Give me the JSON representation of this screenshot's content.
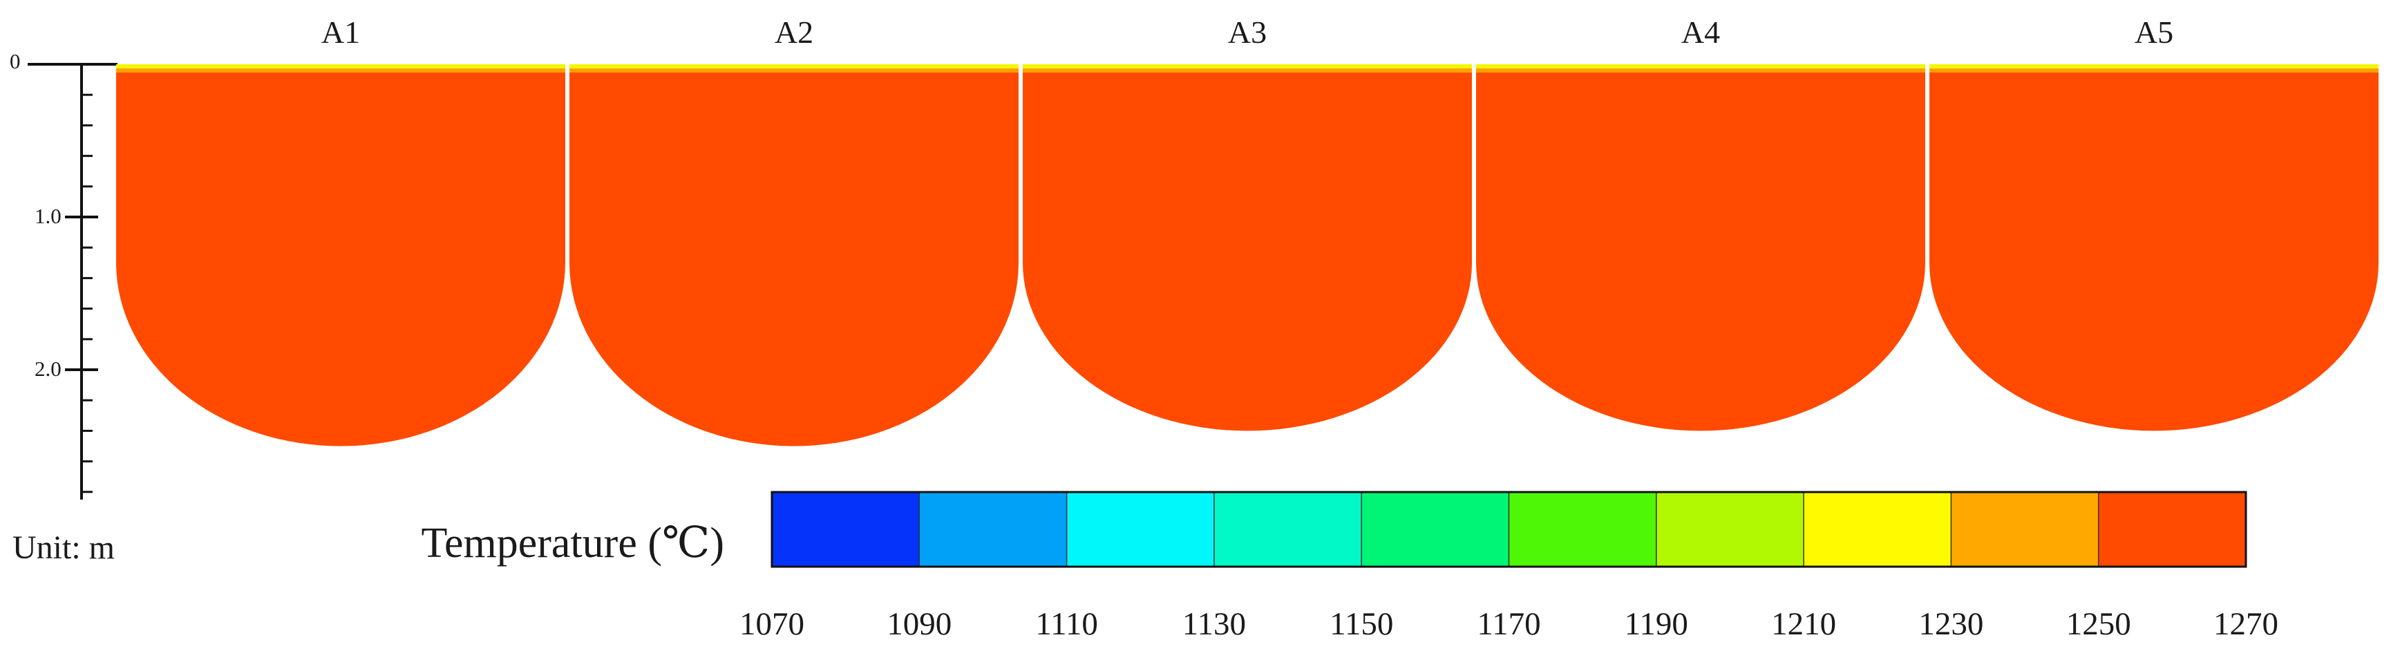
{
  "panels": [
    {
      "label": "A1",
      "depth_m": 2.5
    },
    {
      "label": "A2",
      "depth_m": 2.5
    },
    {
      "label": "A3",
      "depth_m": 2.4
    },
    {
      "label": "A4",
      "depth_m": 2.4
    },
    {
      "label": "A5",
      "depth_m": 2.4
    }
  ],
  "depth_axis": {
    "ticks": [
      {
        "value": 0,
        "label": "0"
      },
      {
        "value": 1.0,
        "label": "1.0"
      },
      {
        "value": 2.0,
        "label": "2.0"
      }
    ],
    "max": 2.85,
    "unit_label": "Unit: m"
  },
  "melt_color": "#FF4A00",
  "surface_colors": {
    "outer": "#F2F700",
    "inner": "#FFA000"
  },
  "colorbar": {
    "title": "Temperature (℃)",
    "bounds": [
      1070,
      1090,
      1110,
      1130,
      1150,
      1170,
      1190,
      1210,
      1230,
      1250,
      1270
    ],
    "tick_labels": [
      "1070",
      "1090",
      "1110",
      "1130",
      "1150",
      "1170",
      "1190",
      "1210",
      "1230",
      "1250",
      "1270"
    ],
    "colors": [
      "#0633F9",
      "#00A1F7",
      "#00F8FA",
      "#00F9C6",
      "#00F575",
      "#4EF706",
      "#B1F902",
      "#FEFB01",
      "#FFA800",
      "#FF4A00"
    ]
  }
}
